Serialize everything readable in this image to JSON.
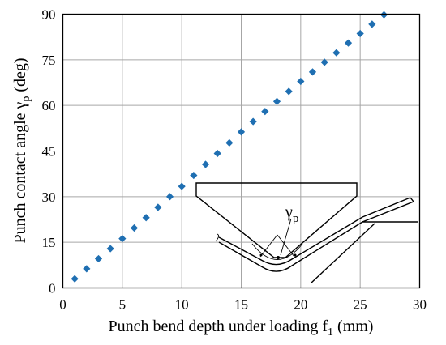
{
  "chart_data": {
    "type": "scatter",
    "title": "",
    "xlabel": "Punch bend depth under loading f",
    "xlabel_sub": "1",
    "xlabel_unit": " (mm)",
    "ylabel": "Punch contact angle γ",
    "ylabel_sub": "p",
    "ylabel_unit": " (deg)",
    "xlim": [
      0,
      30
    ],
    "ylim": [
      0,
      90
    ],
    "xticks": [
      "0",
      "5",
      "10",
      "15",
      "20",
      "25",
      "30"
    ],
    "yticks": [
      "0",
      "15",
      "30",
      "45",
      "60",
      "75",
      "90"
    ],
    "grid": true,
    "legend": "none",
    "marker_color": "#1f6fb2",
    "series": [
      {
        "x": [
          1,
          2,
          3,
          4,
          5,
          6,
          7,
          8,
          9,
          10,
          11,
          12,
          13,
          14,
          15,
          16,
          17,
          18,
          19,
          20,
          21,
          22,
          23,
          24,
          25,
          26,
          27
        ],
        "y": [
          3.0,
          6.3,
          9.6,
          12.9,
          16.2,
          19.7,
          23.1,
          26.5,
          30.0,
          33.4,
          37.0,
          40.6,
          44.2,
          47.7,
          51.3,
          54.7,
          58.0,
          61.3,
          64.6,
          67.9,
          71.0,
          74.2,
          77.3,
          80.5,
          83.6,
          86.7,
          89.8
        ]
      }
    ],
    "inset": {
      "angle_label": "γ",
      "angle_label_sub": "p"
    }
  }
}
